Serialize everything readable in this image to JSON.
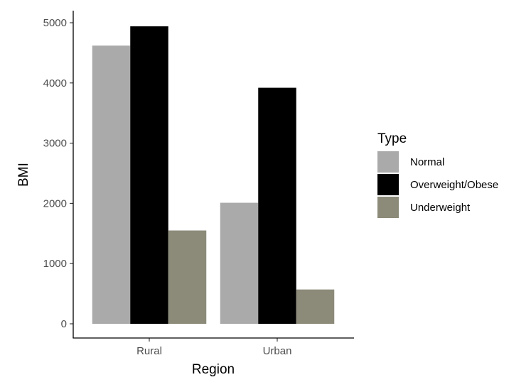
{
  "chart_data": {
    "type": "bar",
    "categories": [
      "Rural",
      "Urban"
    ],
    "series": [
      {
        "name": "Normal",
        "values": [
          4620,
          2010
        ],
        "color": "#aaaaaa"
      },
      {
        "name": "Overweight/Obese",
        "values": [
          4940,
          3920
        ],
        "color": "#000000"
      },
      {
        "name": "Underweight",
        "values": [
          1550,
          570
        ],
        "color": "#8c8a79"
      }
    ],
    "title": "",
    "xlabel": "Region",
    "ylabel": "BMI",
    "ylim": [
      0,
      5000
    ],
    "yticks": [
      0,
      1000,
      2000,
      3000,
      4000,
      5000
    ],
    "legend": {
      "title": "Type",
      "position": "right"
    },
    "grid": false
  }
}
